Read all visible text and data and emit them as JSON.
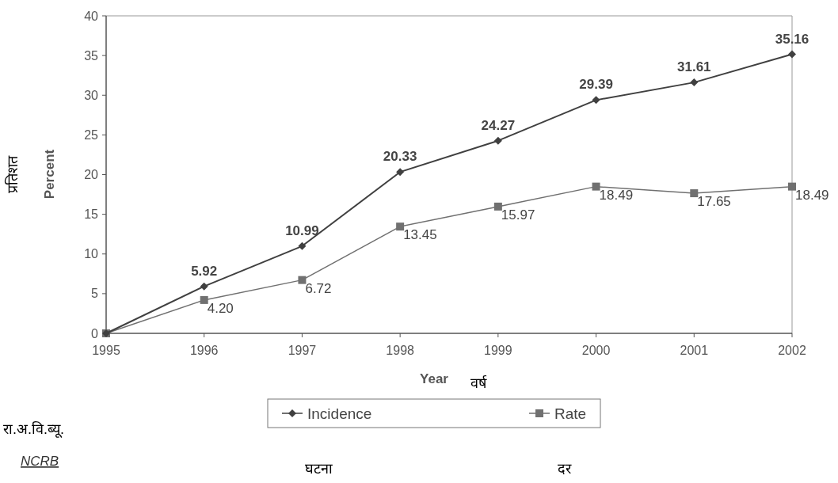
{
  "chart_data": {
    "type": "line",
    "categories": [
      "1995",
      "1996",
      "1997",
      "1998",
      "1999",
      "2000",
      "2001",
      "2002"
    ],
    "xlabel": "Year",
    "ylabel": "Percent",
    "ylim": [
      0,
      40
    ],
    "yticks": [
      0,
      5,
      10,
      15,
      20,
      25,
      30,
      35,
      40
    ],
    "grid": false,
    "legend": "bottom",
    "series": [
      {
        "name": "Incidence",
        "color": "#404040",
        "marker": "diamond",
        "values": [
          0,
          5.92,
          10.99,
          20.33,
          24.27,
          29.39,
          31.61,
          35.16
        ],
        "value_labels": [
          null,
          "5.92",
          "10.99",
          "20.33",
          "24.27",
          "29.39",
          "31.61",
          "35.16"
        ]
      },
      {
        "name": "Rate",
        "color": "#707070",
        "marker": "square",
        "values": [
          0,
          4.2,
          6.72,
          13.45,
          15.97,
          18.49,
          17.65,
          18.49
        ],
        "value_labels": [
          null,
          "4.20",
          "6.72",
          "13.45",
          "15.97",
          "18.49",
          "17.65",
          "18.49"
        ]
      }
    ],
    "annotations": [
      "प्रतिशत",
      "वर्ष",
      "घटना",
      "दर",
      "रा.अ.वि.ब्यू.",
      "NCRB"
    ]
  }
}
